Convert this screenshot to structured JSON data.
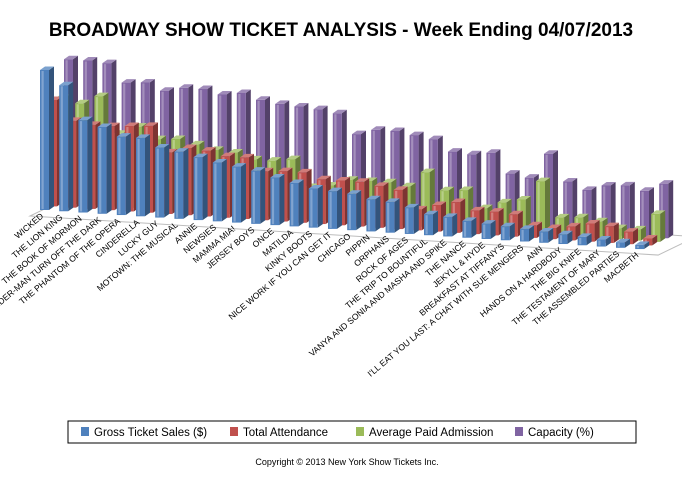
{
  "chart_data": {
    "type": "bar",
    "title": "BROADWAY SHOW TICKET ANALYSIS - Week Ending 04/07/2013",
    "subtitle": "Copyright © 2013 New York Show Tickets Inc.",
    "xlabel": "",
    "ylabel": "",
    "ylim": [
      0,
      100
    ],
    "legend_position": "bottom",
    "categories": [
      "WICKED",
      "THE LION KING",
      "THE BOOK OF MORMON",
      "SPIDER-MAN TURN OFF THE DARK",
      "THE PHANTOM OF THE OPERA",
      "CINDERELLA",
      "LUCKY GUY",
      "MOTOWN: THE MUSICAL",
      "ANNIE",
      "NEWSIES",
      "MAMMA MIA!",
      "JERSEY BOYS",
      "ONCE",
      "MATILDA",
      "KINKY BOOTS",
      "NICE WORK IF YOU CAN GET IT",
      "CHICAGO",
      "PIPPIN",
      "ORPHANS",
      "ROCK OF AGES",
      "THE TRIP TO BOUNTIFUL",
      "VANYA AND SONIA AND MASHA AND SPIKE",
      "THE NANCE",
      "JEKYLL & HYDE",
      "BREAKFAST AT TIFFANY'S",
      "I'LL EAT YOU LAST: A CHAT WITH SUE MENGERS",
      "ANN",
      "HANDS ON A HARDBODY",
      "THE BIG KNIFE",
      "THE TESTAMENT OF MARY",
      "THE ASSEMBLED PARTIES",
      "MACBETH"
    ],
    "series": [
      {
        "name": "Gross Ticket Sales ($)",
        "color": "#4F81BD",
        "values": [
          100,
          90,
          66,
          62,
          56,
          56,
          50,
          48,
          45,
          42,
          40,
          38,
          34,
          31,
          28,
          27,
          26,
          23,
          22,
          19,
          15,
          14,
          12,
          11,
          10,
          9,
          8,
          7,
          6,
          5,
          4,
          3
        ]
      },
      {
        "name": "Total Attendance",
        "color": "#C0504D",
        "values": [
          76,
          62,
          60,
          60,
          61,
          62,
          44,
          48,
          47,
          44,
          44,
          35,
          36,
          36,
          32,
          32,
          32,
          30,
          28,
          15,
          19,
          22,
          17,
          17,
          16,
          9,
          8,
          10,
          13,
          12,
          9,
          5
        ]
      },
      {
        "name": "Average Paid Admission",
        "color": "#9BBB59",
        "values": [
          75,
          72,
          78,
          52,
          58,
          50,
          51,
          48,
          45,
          44,
          40,
          40,
          42,
          23,
          25,
          30,
          30,
          30,
          28,
          39,
          27,
          28,
          16,
          21,
          24,
          38,
          13,
          14,
          12,
          8,
          8,
          20
        ]
      },
      {
        "name": "Capacity (%)",
        "color": "#8064A2",
        "values": [
          100,
          100,
          99,
          86,
          87,
          82,
          85,
          85,
          82,
          84,
          80,
          78,
          77,
          76,
          74,
          60,
          64,
          64,
          62,
          60,
          52,
          51,
          53,
          39,
          37,
          55,
          36,
          31,
          35,
          36,
          33,
          39
        ]
      }
    ]
  }
}
